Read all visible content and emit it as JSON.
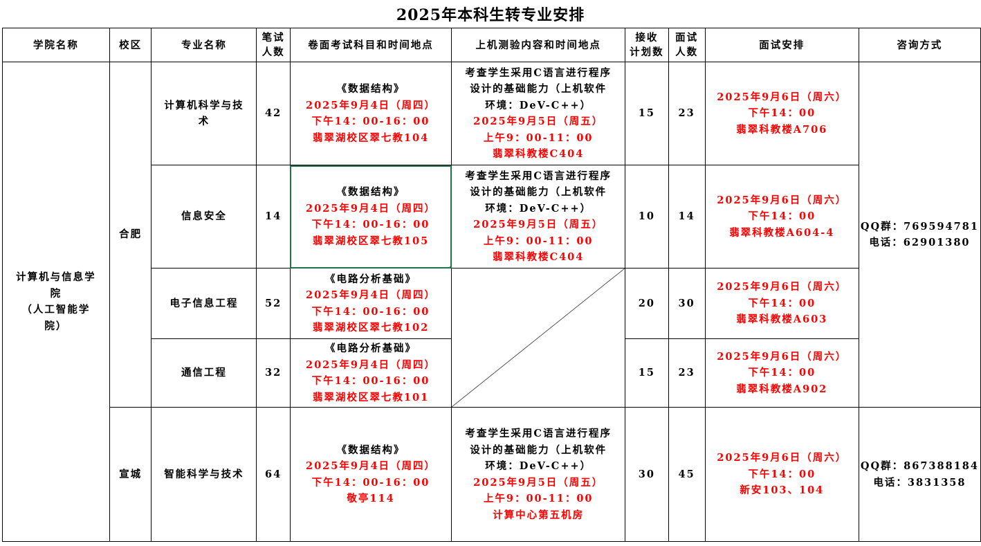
{
  "title": "2025年本科生转专业安排",
  "colors": {
    "red": "#ff0000",
    "black": "#000000",
    "selection": "#217346"
  },
  "headers": [
    [
      "学院名称"
    ],
    [
      "校区"
    ],
    [
      "专业名称"
    ],
    [
      "笔试",
      "人数"
    ],
    [
      "卷面考试科目和时间地点"
    ],
    [
      "上机测验内容和时间地点"
    ],
    [
      "接收",
      "计划数"
    ],
    [
      "面试",
      "人数"
    ],
    [
      "面试安排"
    ],
    [
      "咨询方式"
    ]
  ],
  "college": [
    "计算机与信息学",
    "院",
    "（人工智能学",
    "院）"
  ],
  "campuses": [
    {
      "name": "合肥",
      "contact": [
        "QQ群：769594781",
        "电话：62901380"
      ],
      "majors": [
        {
          "name": [
            "计算机科学与技",
            "术"
          ],
          "written": "42",
          "exam": [
            "《数据结构》",
            "2025年9月4日（周四）",
            "下午14：00-16：00",
            "翡翠湖校区翠七教104"
          ],
          "online": [
            "考查学生采用C语言进行程序",
            "设计的基础能力（上机软件",
            "环境：DeV-C++）",
            "2025年9月5日（周五）",
            "上午9：00-11：00",
            "翡翠科教楼C404"
          ],
          "plan": "15",
          "interview": "23",
          "schedule": [
            "2025年9月6日（周六）",
            "下午14：00",
            "翡翠科教楼A706"
          ]
        },
        {
          "name": [
            "信息安全"
          ],
          "written": "14",
          "exam": [
            "《数据结构》",
            "2025年9月4日（周四）",
            "下午14：00-16：00",
            "翡翠湖校区翠七教105"
          ],
          "online": [
            "考查学生采用C语言进行程序",
            "设计的基础能力（上机软件",
            "环境：DeV-C++）",
            "2025年9月5日（周五）",
            "上午9：00-11：00",
            "翡翠科教楼C404"
          ],
          "plan": "10",
          "interview": "14",
          "schedule": [
            "2025年9月6日（周六）",
            "下午14：00",
            "翡翠科教楼A604-4"
          ]
        },
        {
          "name": [
            "电子信息工程"
          ],
          "written": "52",
          "exam": [
            "《电路分析基础》",
            "2025年9月4日（周四）",
            "下午14：00-16：00",
            "翡翠湖校区翠七教102"
          ],
          "online": null,
          "plan": "20",
          "interview": "30",
          "schedule": [
            "2025年9月6日（周六）",
            "下午14：00",
            "翡翠科教楼A603"
          ]
        },
        {
          "name": [
            "通信工程"
          ],
          "written": "32",
          "exam": [
            "《电路分析基础》",
            "2025年9月4日（周四）",
            "下午14：00-16：00",
            "翡翠湖校区翠七教101"
          ],
          "online": null,
          "plan": "15",
          "interview": "23",
          "schedule": [
            "2025年9月6日（周六）",
            "下午14：00",
            "翡翠科教楼A902"
          ]
        }
      ]
    },
    {
      "name": "宣城",
      "contact": [
        "QQ群：867388184",
        "电话：3831358"
      ],
      "majors": [
        {
          "name": [
            "智能科学与技术"
          ],
          "written": "64",
          "exam": [
            "《数据结构》",
            "2025年9月4日（周四）",
            "下午14：00-16：00",
            "敬亭114"
          ],
          "online": [
            "考查学生采用C语言进行程序",
            "设计的基础能力（上机软件",
            "环境：DeV-C++）",
            "2025年9月5日（周五）",
            "上午9：00-11：00",
            "计算中心第五机房"
          ],
          "plan": "30",
          "interview": "45",
          "schedule": [
            "2025年9月6日（周六）",
            "下午14：00",
            "新安103、104"
          ]
        }
      ]
    }
  ]
}
